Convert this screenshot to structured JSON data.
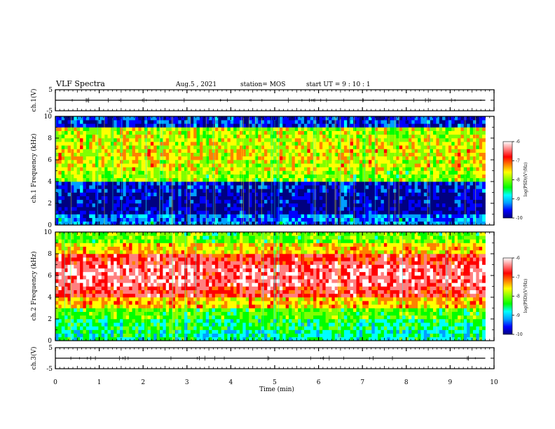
{
  "header": {
    "title": "VLF Spectra",
    "date": "Aug.5 , 2021",
    "station": "station= MOS",
    "start": "start UT = 9 : 10 : 1"
  },
  "colors": {
    "scale": [
      "#000080",
      "#0000ff",
      "#00a0ff",
      "#00ffff",
      "#00ff00",
      "#80ff00",
      "#ffff00",
      "#ff8000",
      "#ff0000",
      "#ff8080",
      "#ffffff"
    ],
    "background": "#ffffff",
    "axis": "#000000"
  },
  "chart_data": [
    {
      "type": "line",
      "panel": "ch1-voltage",
      "ylabel": "ch.1(V)",
      "y_ticks": [
        "5",
        "-5"
      ],
      "ylim": [
        -5,
        5
      ],
      "x": [
        0,
        2,
        4,
        6,
        8,
        9.8
      ],
      "values": [
        0,
        0,
        0,
        0,
        0,
        0
      ]
    },
    {
      "type": "heatmap",
      "panel": "ch1-spectrogram",
      "ylabel": "ch.1 Frequency (kHz)",
      "y_ticks": [
        "0",
        "2",
        "4",
        "6",
        "8",
        "10"
      ],
      "ylim": [
        0,
        10
      ],
      "colorbar_label": "log(PSD)(V²/Hz)",
      "colorbar_ticks": [
        "-6",
        "-7",
        "-8",
        "-9",
        "-10"
      ],
      "clim": [
        -10,
        -6
      ],
      "freq_khz": [
        0.5,
        1.5,
        2.5,
        3.5,
        4.5,
        5.5,
        6.5,
        7.5,
        8.5,
        9.5
      ],
      "mean_log_psd": [
        -9.3,
        -9.9,
        -9.9,
        -9.7,
        -8.0,
        -7.7,
        -7.6,
        -7.7,
        -7.8,
        -9.6
      ]
    },
    {
      "type": "heatmap",
      "panel": "ch2-spectrogram",
      "ylabel": "ch.2 Frequency (kHz)",
      "y_ticks": [
        "0",
        "2",
        "4",
        "6",
        "8",
        "10"
      ],
      "ylim": [
        0,
        10
      ],
      "colorbar_label": "log(PSD)(V²/Hz)",
      "colorbar_ticks": [
        "-6",
        "-7",
        "-8",
        "-9",
        "-10"
      ],
      "clim": [
        -10,
        -6
      ],
      "freq_khz": [
        0.5,
        1.5,
        2.5,
        3.5,
        4.5,
        5.5,
        6.5,
        7.5,
        8.5,
        9.5
      ],
      "mean_log_psd": [
        -8.7,
        -8.5,
        -8.2,
        -7.4,
        -6.7,
        -6.4,
        -6.4,
        -6.7,
        -7.5,
        -8.1
      ]
    },
    {
      "type": "line",
      "panel": "ch3-voltage",
      "ylabel": "ch.3(V)",
      "y_ticks": [
        "5",
        "-5"
      ],
      "ylim": [
        -5,
        5
      ],
      "x": [
        0,
        2,
        4,
        6,
        8,
        9.8
      ],
      "values": [
        0,
        0,
        0,
        0,
        0,
        0
      ]
    }
  ],
  "x_axis": {
    "label": "Time (min)",
    "ticks": [
      "0",
      "1",
      "2",
      "3",
      "4",
      "5",
      "6",
      "7",
      "8",
      "9",
      "10"
    ],
    "xlim": [
      0,
      10
    ],
    "data_end_min": 9.8
  }
}
